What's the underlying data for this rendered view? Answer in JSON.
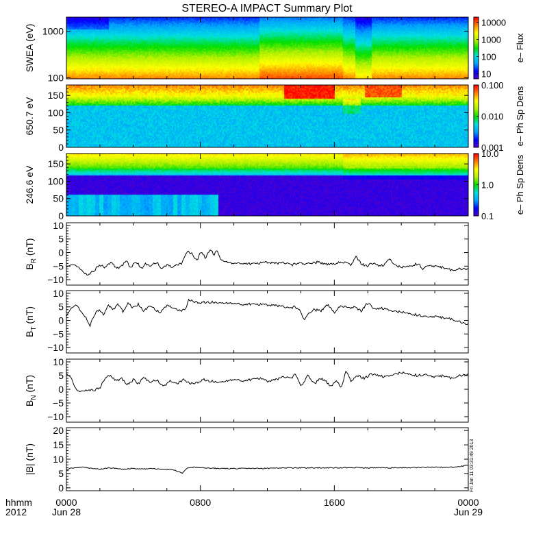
{
  "title": "STEREO-A IMPACT Summary Plot",
  "x_axis": {
    "row_label": "hhmm",
    "year": "2012",
    "ticks": [
      {
        "hours": 0,
        "label": "0000",
        "date": "Jun 28"
      },
      {
        "hours": 8,
        "label": "0800",
        "date": ""
      },
      {
        "hours": 16,
        "label": "1600",
        "date": ""
      },
      {
        "hours": 24,
        "label": "0000",
        "date": "Jun 29"
      }
    ],
    "range_hours": [
      0,
      24
    ]
  },
  "side_stamp": "Fri Jan 11 03:31:49 2013",
  "chart_data": [
    {
      "type": "heatmap",
      "name": "swea",
      "ylabel": "SWEA (eV)",
      "ylog": true,
      "ylim": [
        95,
        2000
      ],
      "yticks": [
        {
          "v": 100,
          "label": "100"
        },
        {
          "v": 1000,
          "label": "1000"
        }
      ],
      "colorbar": {
        "label": "e– Flux",
        "log": true,
        "range": [
          5,
          20000
        ],
        "ticks": [
          {
            "v": 10,
            "label": "10"
          },
          {
            "v": 100,
            "label": "100"
          },
          {
            "v": 1000,
            "label": "1000"
          },
          {
            "v": 10000,
            "label": "10000"
          }
        ]
      },
      "colormap": [
        "#5a00c8",
        "#0000ff",
        "#00a0ff",
        "#00e0e0",
        "#00e000",
        "#b0f000",
        "#ffff00",
        "#ff8000",
        "#ff0000"
      ]
    },
    {
      "type": "heatmap",
      "name": "pad650",
      "ylabel": "650.7 eV",
      "ylim": [
        0,
        180
      ],
      "yticks": [
        {
          "v": 0,
          "label": "0"
        },
        {
          "v": 50,
          "label": "50"
        },
        {
          "v": 100,
          "label": "100"
        },
        {
          "v": 150,
          "label": "150"
        }
      ],
      "colorbar": {
        "label": "e– Ph Sp Dens",
        "log": true,
        "range": [
          0.001,
          0.1
        ],
        "ticks": [
          {
            "v": 0.001,
            "label": "0.001"
          },
          {
            "v": 0.01,
            "label": "0.010"
          },
          {
            "v": 0.1,
            "label": "0.100"
          }
        ]
      },
      "colormap": [
        "#5a00c8",
        "#0000ff",
        "#00a0ff",
        "#00e0e0",
        "#00e000",
        "#b0f000",
        "#ffff00",
        "#ff8000",
        "#ff0000"
      ]
    },
    {
      "type": "heatmap",
      "name": "pad246",
      "ylabel": "246.6 eV",
      "ylim": [
        0,
        180
      ],
      "yticks": [
        {
          "v": 0,
          "label": "0"
        },
        {
          "v": 50,
          "label": "50"
        },
        {
          "v": 100,
          "label": "100"
        },
        {
          "v": 150,
          "label": "150"
        }
      ],
      "colorbar": {
        "label": "e– Ph Sp Dens",
        "log": true,
        "range": [
          0.1,
          10
        ],
        "ticks": [
          {
            "v": 0.1,
            "label": "0.1"
          },
          {
            "v": 1,
            "label": "1.0"
          },
          {
            "v": 10,
            "label": "10.0"
          }
        ]
      },
      "colormap": [
        "#5a00c8",
        "#0000ff",
        "#00a0ff",
        "#00e0e0",
        "#00e000",
        "#b0f000",
        "#ffff00",
        "#ff8000",
        "#ff0000"
      ]
    },
    {
      "type": "line",
      "name": "br",
      "ylabel": "B",
      "ylabel_sub": "R",
      "ylabel_unit": " (nT)",
      "ylim": [
        -12,
        11
      ],
      "yticks": [
        {
          "v": -10,
          "label": "−10"
        },
        {
          "v": -5,
          "label": "−5"
        },
        {
          "v": 0,
          "label": "0"
        },
        {
          "v": 5,
          "label": "5"
        },
        {
          "v": 10,
          "label": "10"
        }
      ],
      "x": [
        0,
        0.4,
        0.8,
        1.1,
        1.3,
        1.6,
        2.0,
        2.3,
        2.7,
        3.0,
        3.3,
        3.6,
        3.8,
        4.2,
        4.5,
        4.7,
        5.0,
        5.4,
        5.7,
        6.0,
        6.3,
        6.6,
        6.9,
        7.2,
        7.5,
        7.8,
        8.0,
        8.3,
        8.6,
        8.8,
        9.0,
        9.2,
        9.4,
        9.6,
        9.9,
        10.2,
        10.6,
        11.0,
        11.5,
        12.0,
        12.5,
        13.0,
        13.5,
        14.0,
        14.4,
        14.7,
        15.0,
        15.5,
        16.0,
        16.5,
        17.0,
        17.3,
        17.6,
        17.9,
        18.3,
        18.7,
        19.0,
        19.3,
        19.6,
        20.0,
        20.5,
        21.0,
        21.3,
        21.6,
        22.0,
        22.5,
        23.0,
        23.5,
        24.0
      ],
      "y": [
        -5.0,
        -4.5,
        -6.0,
        -7.5,
        -8.0,
        -7.0,
        -4.5,
        -5.5,
        -3.5,
        -6.0,
        -5.0,
        -3.0,
        -5.5,
        -3.5,
        -6.0,
        -4.0,
        -5.0,
        -3.5,
        -6.0,
        -4.5,
        -5.5,
        -4.5,
        -4.0,
        0.5,
        -0.5,
        -3.0,
        0.5,
        -2.0,
        1.5,
        -1.0,
        1.0,
        -2.5,
        -3.0,
        -3.5,
        -4.0,
        -4.0,
        -3.8,
        -4.2,
        -4.0,
        -3.5,
        -4.0,
        -3.8,
        -4.5,
        -3.8,
        -4.2,
        -4.0,
        -3.5,
        -4.2,
        -4.0,
        -3.5,
        -4.5,
        -1.5,
        -4.0,
        -5.0,
        -4.0,
        -5.0,
        -4.5,
        -2.0,
        -4.5,
        -5.5,
        -5.0,
        -4.0,
        -6.0,
        -4.5,
        -5.0,
        -5.5,
        -6.5,
        -6.0,
        -6.0
      ]
    },
    {
      "type": "line",
      "name": "bt",
      "ylabel": "B",
      "ylabel_sub": "T",
      "ylabel_unit": " (nT)",
      "ylim": [
        -12,
        11
      ],
      "yticks": [
        {
          "v": -10,
          "label": "−10"
        },
        {
          "v": -5,
          "label": "−5"
        },
        {
          "v": 0,
          "label": "0"
        },
        {
          "v": 5,
          "label": "5"
        },
        {
          "v": 10,
          "label": "10"
        }
      ],
      "x": [
        0,
        0.3,
        0.6,
        0.9,
        1.2,
        1.4,
        1.7,
        2.0,
        2.2,
        2.5,
        2.8,
        3.1,
        3.4,
        3.7,
        4.0,
        4.3,
        4.6,
        5.0,
        5.3,
        5.6,
        6.0,
        6.4,
        6.8,
        7.1,
        7.3,
        7.6,
        8.0,
        8.5,
        9.0,
        9.5,
        10.0,
        10.5,
        11.0,
        11.5,
        12.0,
        12.5,
        13.0,
        13.3,
        13.6,
        13.9,
        14.2,
        14.5,
        14.8,
        15.2,
        15.6,
        16.0,
        16.4,
        16.8,
        17.2,
        17.6,
        18.0,
        18.4,
        18.8,
        19.2,
        19.6,
        20.0,
        20.5,
        21.0,
        21.5,
        22.0,
        22.5,
        23.0,
        23.5,
        24.0
      ],
      "y": [
        2.0,
        4.5,
        5.5,
        3.0,
        1.0,
        -2.0,
        2.5,
        4.0,
        2.0,
        5.5,
        4.0,
        6.0,
        3.0,
        6.5,
        4.5,
        6.0,
        3.5,
        5.5,
        4.0,
        3.0,
        5.5,
        4.5,
        3.5,
        4.0,
        7.5,
        7.0,
        6.5,
        6.8,
        6.5,
        6.5,
        6.2,
        6.0,
        6.0,
        5.8,
        5.8,
        5.5,
        5.0,
        4.5,
        5.0,
        4.0,
        0.5,
        2.5,
        4.0,
        3.5,
        6.0,
        3.0,
        5.5,
        4.5,
        5.0,
        3.5,
        6.5,
        4.0,
        4.5,
        4.0,
        3.5,
        3.0,
        2.5,
        2.0,
        1.5,
        1.5,
        1.0,
        0.5,
        -0.5,
        -1.5
      ]
    },
    {
      "type": "line",
      "name": "bn",
      "ylabel": "B",
      "ylabel_sub": "N",
      "ylabel_unit": " (nT)",
      "ylim": [
        -12,
        11
      ],
      "yticks": [
        {
          "v": -10,
          "label": "−10"
        },
        {
          "v": -5,
          "label": "−5"
        },
        {
          "v": 0,
          "label": "0"
        },
        {
          "v": 5,
          "label": "5"
        },
        {
          "v": 10,
          "label": "10"
        }
      ],
      "x": [
        0,
        0.3,
        0.5,
        0.7,
        1.0,
        1.3,
        1.6,
        2.0,
        2.3,
        2.6,
        3.0,
        3.3,
        3.6,
        4.0,
        4.3,
        4.6,
        5.0,
        5.4,
        5.8,
        6.2,
        6.6,
        7.0,
        7.4,
        7.8,
        8.2,
        8.6,
        9.0,
        9.5,
        10.0,
        10.5,
        11.0,
        11.5,
        12.0,
        12.5,
        13.0,
        13.4,
        13.7,
        14.0,
        14.4,
        14.8,
        15.2,
        15.5,
        15.8,
        16.1,
        16.4,
        16.7,
        17.0,
        17.4,
        17.8,
        18.2,
        18.6,
        19.0,
        19.5,
        20.0,
        20.5,
        21.0,
        21.5,
        22.0,
        22.5,
        23.0,
        23.5,
        24.0
      ],
      "y": [
        6.0,
        4.0,
        0.5,
        -1.0,
        -0.5,
        0.0,
        -0.5,
        0.5,
        4.0,
        5.0,
        3.0,
        4.0,
        1.5,
        3.5,
        2.0,
        4.5,
        2.5,
        3.5,
        1.0,
        3.0,
        2.0,
        3.5,
        2.0,
        2.5,
        3.5,
        3.0,
        2.5,
        3.0,
        3.5,
        3.2,
        3.5,
        4.0,
        3.0,
        3.5,
        4.5,
        4.0,
        5.5,
        1.0,
        5.0,
        2.0,
        4.0,
        3.0,
        1.0,
        3.5,
        0.5,
        6.5,
        3.0,
        5.0,
        4.0,
        5.5,
        5.0,
        4.5,
        5.5,
        6.0,
        5.5,
        5.0,
        5.5,
        4.5,
        5.0,
        4.0,
        5.0,
        5.5
      ]
    },
    {
      "type": "line",
      "name": "bmag",
      "ylabel": "|B| (nT)",
      "ylim": [
        -1,
        21
      ],
      "yticks": [
        {
          "v": 0,
          "label": "0"
        },
        {
          "v": 5,
          "label": "5"
        },
        {
          "v": 10,
          "label": "10"
        },
        {
          "v": 15,
          "label": "15"
        },
        {
          "v": 20,
          "label": "20"
        }
      ],
      "x": [
        0,
        0.5,
        1.0,
        1.5,
        2.0,
        2.5,
        3.0,
        3.5,
        4.0,
        4.5,
        5.0,
        5.5,
        6.0,
        6.5,
        6.9,
        7.2,
        7.6,
        8.0,
        9.0,
        10.0,
        11.0,
        12.0,
        13.0,
        14.0,
        15.0,
        16.0,
        17.0,
        18.0,
        19.0,
        20.0,
        21.0,
        22.0,
        23.0,
        23.5,
        24.0
      ],
      "y": [
        6.5,
        7.0,
        7.2,
        6.8,
        6.5,
        7.0,
        6.8,
        6.5,
        6.8,
        6.5,
        6.8,
        6.5,
        6.5,
        6.2,
        5.0,
        6.8,
        7.2,
        7.0,
        6.8,
        6.7,
        6.8,
        6.8,
        6.9,
        7.0,
        7.0,
        7.0,
        7.1,
        7.0,
        7.0,
        7.0,
        7.1,
        7.2,
        7.2,
        7.5,
        7.8
      ]
    }
  ]
}
